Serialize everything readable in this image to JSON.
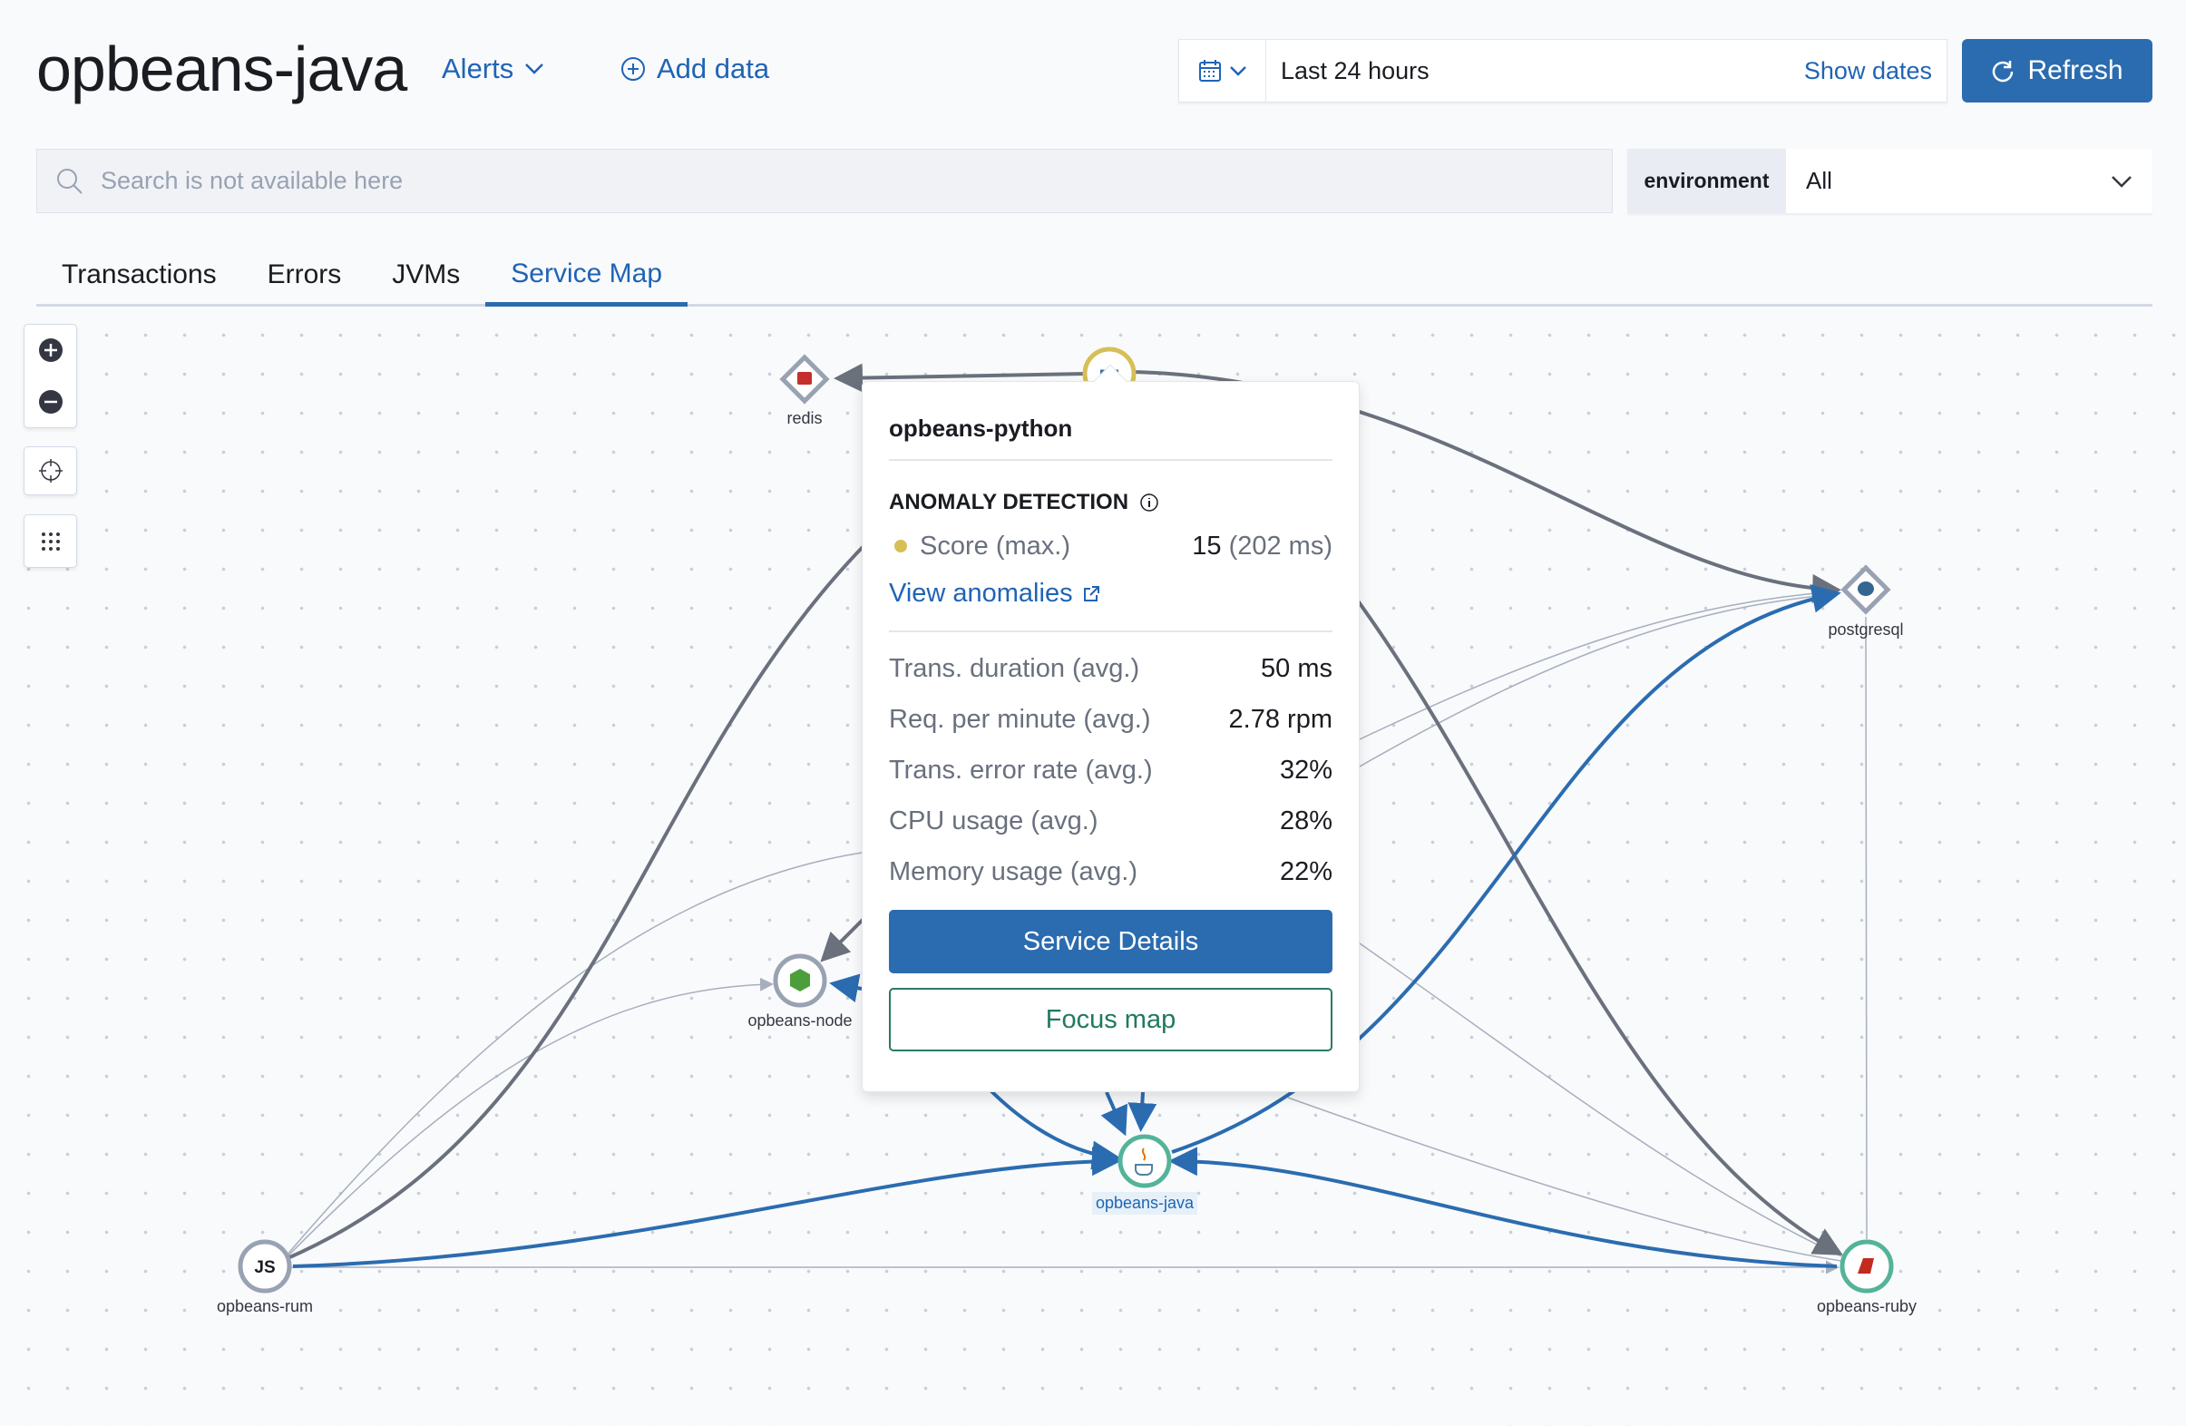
{
  "header": {
    "title": "opbeans-java",
    "alerts_label": "Alerts",
    "add_data_label": "Add data"
  },
  "date_picker": {
    "range": "Last 24 hours",
    "show_dates": "Show dates",
    "refresh": "Refresh"
  },
  "search": {
    "placeholder": "Search is not available here"
  },
  "environment": {
    "label": "environment",
    "value": "All"
  },
  "tabs": [
    {
      "label": "Transactions"
    },
    {
      "label": "Errors"
    },
    {
      "label": "JVMs"
    },
    {
      "label": "Service Map",
      "active": true
    }
  ],
  "map": {
    "nodes": [
      {
        "id": "redis",
        "label": "redis",
        "icon": "redis-icon"
      },
      {
        "id": "opbeans-python",
        "label": "",
        "icon": "python-icon",
        "anomaly_color": "#d6bf57"
      },
      {
        "id": "postgresql",
        "label": "postgresql",
        "icon": "postgresql-icon"
      },
      {
        "id": "opbeans-node",
        "label": "opbeans-node",
        "icon": "nodejs-icon"
      },
      {
        "id": "opbeans-java",
        "label": "opbeans-java",
        "icon": "java-icon",
        "selected": true
      },
      {
        "id": "opbeans-rum",
        "label": "opbeans-rum",
        "icon": "js-icon"
      },
      {
        "id": "opbeans-ruby",
        "label": "opbeans-ruby",
        "icon": "ruby-icon"
      }
    ],
    "colors": {
      "edge": "#6a717d",
      "highlight": "#2b6cb0",
      "thin": "#a7afbe",
      "healthy": "#54b399"
    }
  },
  "popover": {
    "service": "opbeans-python",
    "anomaly_heading": "ANOMALY DETECTION",
    "score_label": "Score (max.)",
    "score_value": "15",
    "score_detail": "(202 ms)",
    "score_color": "#d6bf57",
    "view_anomalies": "View anomalies",
    "metrics": [
      {
        "label": "Trans. duration (avg.)",
        "value": "50 ms"
      },
      {
        "label": "Req. per minute (avg.)",
        "value": "2.78 rpm"
      },
      {
        "label": "Trans. error rate (avg.)",
        "value": "32%"
      },
      {
        "label": "CPU usage (avg.)",
        "value": "28%"
      },
      {
        "label": "Memory usage (avg.)",
        "value": "22%"
      }
    ],
    "service_details": "Service Details",
    "focus_map": "Focus map"
  }
}
